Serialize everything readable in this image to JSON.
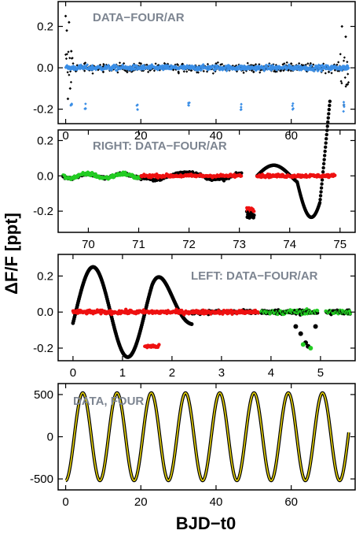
{
  "figure": {
    "ylabel": "ΔF/F [ppt]",
    "xlabel": "BJD−t0"
  },
  "colors": {
    "black": "#000000",
    "blue": "#3a8ee6",
    "green": "#22cc22",
    "red": "#ee1111",
    "yellow": "#e6d200",
    "annotation": "#7d8591"
  },
  "chart_data": [
    {
      "type": "scatter",
      "annotation": "DATA−FOUR/AR",
      "xlim": [
        -2,
        77
      ],
      "ylim": [
        -0.27,
        0.32
      ],
      "xticks": [
        0,
        20,
        40,
        60
      ],
      "yticks": [
        -0.2,
        0.0,
        0.2
      ],
      "ytick_labels": [
        "-0.2",
        "0.0",
        "0.2"
      ],
      "series": [
        {
          "color": "black",
          "kind": "data_minus_four",
          "x": [
            0.0,
            0.3,
            0.6,
            0.9,
            1.2,
            1.5,
            5,
            10,
            20,
            30,
            40,
            50,
            60,
            70,
            73.5,
            74.0,
            74.5,
            75.0
          ],
          "y": [
            0.25,
            0.18,
            -0.15,
            0.22,
            -0.1,
            0.08,
            0.02,
            -0.02,
            0.02,
            -0.02,
            0.02,
            -0.02,
            0.02,
            -0.02,
            0.2,
            -0.18,
            0.15,
            -0.08
          ]
        },
        {
          "color": "blue",
          "kind": "data_minus_four_ar",
          "x": [
            0,
            10,
            20,
            30,
            40,
            50,
            60,
            70,
            75
          ],
          "y": [
            0.0,
            0.0,
            0.0,
            0.0,
            0.0,
            0.0,
            0.0,
            0.0,
            0.0
          ]
        },
        {
          "color": "blue",
          "kind": "dips",
          "x": [
            1.5,
            5.2,
            19.0,
            32.8,
            46.6,
            60.4,
            74.0
          ],
          "y": [
            -0.19,
            -0.18,
            -0.18,
            -0.18,
            -0.18,
            -0.18,
            -0.19
          ]
        }
      ]
    },
    {
      "type": "scatter",
      "annotation": "RIGHT: DATA−FOUR/AR",
      "xlim": [
        69.4,
        75.3
      ],
      "ylim": [
        -0.32,
        0.26
      ],
      "xticks": [
        70,
        71,
        72,
        73,
        74,
        75
      ],
      "yticks": [
        -0.2,
        0.0,
        0.2
      ],
      "ytick_labels": [
        "-0.2",
        "0.0",
        "0.2"
      ],
      "series": [
        {
          "color": "black",
          "kind": "residual",
          "x": [
            71.0,
            72.0,
            73.0,
            73.25,
            73.5,
            73.8,
            74.0,
            74.3,
            74.55,
            74.75
          ],
          "y": [
            0.02,
            0.02,
            0.0,
            -0.23,
            -0.02,
            0.05,
            0.08,
            -0.08,
            -0.19,
            0.22
          ]
        },
        {
          "color": "green",
          "kind": "residual_ar",
          "x": [
            69.5,
            70.0,
            70.5,
            71.0
          ],
          "y": [
            0.0,
            0.0,
            0.0,
            0.0
          ]
        },
        {
          "color": "red",
          "kind": "residual_ar",
          "x": [
            71.1,
            72.0,
            73.0,
            73.2,
            73.5,
            74.0,
            74.5,
            74.9
          ],
          "y": [
            0.0,
            0.0,
            0.0,
            -0.19,
            0.0,
            0.0,
            0.0,
            0.0
          ]
        }
      ]
    },
    {
      "type": "scatter",
      "annotation": "LEFT: DATA−FOUR/AR",
      "xlim": [
        -0.3,
        5.7
      ],
      "ylim": [
        -0.27,
        0.32
      ],
      "xticks": [
        0,
        1,
        2,
        3,
        4,
        5
      ],
      "yticks": [
        -0.2,
        0.0,
        0.2
      ],
      "ytick_labels": [
        "-0.2",
        "0.0",
        "0.2"
      ],
      "series": [
        {
          "color": "black",
          "kind": "residual",
          "x": [
            0.05,
            0.3,
            0.75,
            1.45,
            1.8,
            2.2,
            4.5,
            4.9
          ],
          "y": [
            -0.22,
            0.28,
            -0.17,
            0.22,
            0.02,
            -0.05,
            -0.08,
            -0.08
          ]
        },
        {
          "color": "red",
          "kind": "residual_ar",
          "x": [
            0.0,
            1.0,
            2.0,
            3.0,
            3.7,
            1.5,
            1.7
          ],
          "y": [
            0.0,
            0.0,
            0.0,
            0.0,
            0.0,
            -0.19,
            -0.2
          ]
        },
        {
          "color": "green",
          "kind": "residual_ar",
          "x": [
            3.8,
            4.5,
            4.7,
            4.8,
            5.0,
            5.6
          ],
          "y": [
            0.0,
            0.0,
            -0.18,
            -0.2,
            0.0,
            0.0
          ]
        }
      ]
    },
    {
      "type": "line",
      "annotation": "DATA, FOUR",
      "xlim": [
        -2,
        77
      ],
      "ylim": [
        -630,
        630
      ],
      "xticks": [
        0,
        20,
        40,
        60
      ],
      "yticks": [
        -500,
        0,
        500
      ],
      "ytick_labels": [
        "-500",
        "0",
        "500"
      ],
      "amplitude": 520,
      "period": 9.11,
      "x_range": [
        0,
        75.3
      ],
      "series": [
        {
          "color": "black",
          "kind": "data"
        },
        {
          "color": "yellow",
          "kind": "fourier_fit"
        }
      ]
    }
  ]
}
